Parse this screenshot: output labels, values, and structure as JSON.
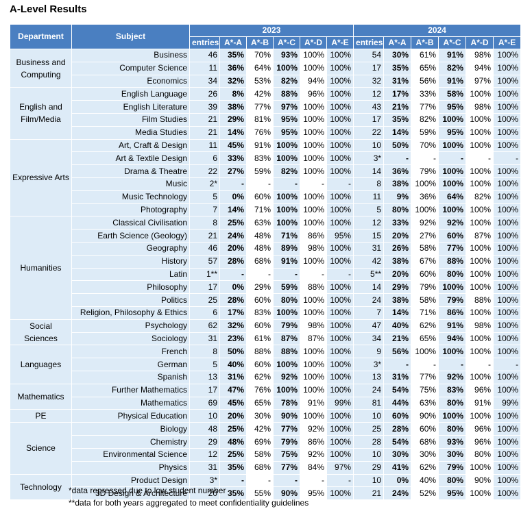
{
  "title": "A-Level Results",
  "table": {
    "header": {
      "department": "Department",
      "subject": "Subject",
      "years": [
        "2023",
        "2024"
      ],
      "columns": [
        "entries",
        "A*-A",
        "A*-B",
        "A*-C",
        "A*-D",
        "A*-E"
      ]
    },
    "groups": [
      {
        "department": "Business and Computing",
        "rows": [
          {
            "subject": "Business",
            "results": [
              [
                "46",
                "35%",
                "70%",
                "93%",
                "100%",
                "100%"
              ],
              [
                "54",
                "30%",
                "61%",
                "91%",
                "98%",
                "100%"
              ]
            ]
          },
          {
            "subject": "Computer Science",
            "results": [
              [
                "11",
                "36%",
                "64%",
                "100%",
                "100%",
                "100%"
              ],
              [
                "17",
                "35%",
                "65%",
                "82%",
                "94%",
                "100%"
              ]
            ]
          },
          {
            "subject": "Economics",
            "results": [
              [
                "34",
                "32%",
                "53%",
                "82%",
                "94%",
                "100%"
              ],
              [
                "32",
                "31%",
                "56%",
                "91%",
                "97%",
                "100%"
              ]
            ]
          }
        ]
      },
      {
        "department": "English and Film/Media",
        "rows": [
          {
            "subject": "English Language",
            "results": [
              [
                "26",
                "8%",
                "42%",
                "88%",
                "96%",
                "100%"
              ],
              [
                "12",
                "17%",
                "33%",
                "58%",
                "100%",
                "100%"
              ]
            ]
          },
          {
            "subject": "English Literature",
            "results": [
              [
                "39",
                "38%",
                "77%",
                "97%",
                "100%",
                "100%"
              ],
              [
                "43",
                "21%",
                "77%",
                "95%",
                "98%",
                "100%"
              ]
            ]
          },
          {
            "subject": "Film Studies",
            "results": [
              [
                "21",
                "29%",
                "81%",
                "95%",
                "100%",
                "100%"
              ],
              [
                "17",
                "35%",
                "82%",
                "100%",
                "100%",
                "100%"
              ]
            ]
          },
          {
            "subject": "Media Studies",
            "results": [
              [
                "21",
                "14%",
                "76%",
                "95%",
                "100%",
                "100%"
              ],
              [
                "22",
                "14%",
                "59%",
                "95%",
                "100%",
                "100%"
              ]
            ]
          }
        ]
      },
      {
        "department": "Expressive Arts",
        "rows": [
          {
            "subject": "Art, Craft & Design",
            "results": [
              [
                "11",
                "45%",
                "91%",
                "100%",
                "100%",
                "100%"
              ],
              [
                "10",
                "50%",
                "70%",
                "100%",
                "100%",
                "100%"
              ]
            ]
          },
          {
            "subject": "Art & Textile Design",
            "results": [
              [
                "6",
                "33%",
                "83%",
                "100%",
                "100%",
                "100%"
              ],
              [
                "3*",
                "-",
                "-",
                "-",
                "-",
                "-"
              ]
            ]
          },
          {
            "subject": "Drama & Theatre",
            "results": [
              [
                "22",
                "27%",
                "59%",
                "82%",
                "100%",
                "100%"
              ],
              [
                "14",
                "36%",
                "79%",
                "100%",
                "100%",
                "100%"
              ]
            ]
          },
          {
            "subject": "Music",
            "results": [
              [
                "2*",
                "-",
                "-",
                "-",
                "-",
                "-"
              ],
              [
                "8",
                "38%",
                "100%",
                "100%",
                "100%",
                "100%"
              ]
            ]
          },
          {
            "subject": "Music Technology",
            "results": [
              [
                "5",
                "0%",
                "60%",
                "100%",
                "100%",
                "100%"
              ],
              [
                "11",
                "9%",
                "36%",
                "64%",
                "82%",
                "100%"
              ]
            ]
          },
          {
            "subject": "Photography",
            "results": [
              [
                "7",
                "14%",
                "71%",
                "100%",
                "100%",
                "100%"
              ],
              [
                "5",
                "80%",
                "100%",
                "100%",
                "100%",
                "100%"
              ]
            ]
          }
        ]
      },
      {
        "department": "Humanities",
        "rows": [
          {
            "subject": "Classical Civilisation",
            "results": [
              [
                "8",
                "25%",
                "63%",
                "100%",
                "100%",
                "100%"
              ],
              [
                "12",
                "33%",
                "92%",
                "92%",
                "100%",
                "100%"
              ]
            ]
          },
          {
            "subject": "Earth Science (Geology)",
            "results": [
              [
                "21",
                "24%",
                "48%",
                "71%",
                "86%",
                "95%"
              ],
              [
                "15",
                "20%",
                "27%",
                "60%",
                "87%",
                "100%"
              ]
            ]
          },
          {
            "subject": "Geography",
            "results": [
              [
                "46",
                "20%",
                "48%",
                "89%",
                "98%",
                "100%"
              ],
              [
                "31",
                "26%",
                "58%",
                "77%",
                "100%",
                "100%"
              ]
            ]
          },
          {
            "subject": "History",
            "results": [
              [
                "57",
                "28%",
                "68%",
                "91%",
                "100%",
                "100%"
              ],
              [
                "42",
                "38%",
                "67%",
                "88%",
                "100%",
                "100%"
              ]
            ]
          },
          {
            "subject": "Latin",
            "results": [
              [
                "1**",
                "-",
                "-",
                "-",
                "-",
                "-"
              ],
              [
                "5**",
                "20%",
                "60%",
                "80%",
                "100%",
                "100%"
              ]
            ]
          },
          {
            "subject": "Philosophy",
            "results": [
              [
                "17",
                "0%",
                "29%",
                "59%",
                "88%",
                "100%"
              ],
              [
                "14",
                "29%",
                "79%",
                "100%",
                "100%",
                "100%"
              ]
            ]
          },
          {
            "subject": "Politics",
            "results": [
              [
                "25",
                "28%",
                "60%",
                "80%",
                "100%",
                "100%"
              ],
              [
                "24",
                "38%",
                "58%",
                "79%",
                "88%",
                "100%"
              ]
            ]
          },
          {
            "subject": "Religion, Philosophy & Ethics",
            "results": [
              [
                "6",
                "17%",
                "83%",
                "100%",
                "100%",
                "100%"
              ],
              [
                "7",
                "14%",
                "71%",
                "86%",
                "100%",
                "100%"
              ]
            ]
          }
        ]
      },
      {
        "department": "Social Sciences",
        "rows": [
          {
            "subject": "Psychology",
            "results": [
              [
                "62",
                "32%",
                "60%",
                "79%",
                "98%",
                "100%"
              ],
              [
                "47",
                "40%",
                "62%",
                "91%",
                "98%",
                "100%"
              ]
            ]
          },
          {
            "subject": "Sociology",
            "results": [
              [
                "31",
                "23%",
                "61%",
                "87%",
                "87%",
                "100%"
              ],
              [
                "34",
                "21%",
                "65%",
                "94%",
                "100%",
                "100%"
              ]
            ]
          }
        ]
      },
      {
        "department": "Languages",
        "rows": [
          {
            "subject": "French",
            "results": [
              [
                "8",
                "50%",
                "88%",
                "88%",
                "100%",
                "100%"
              ],
              [
                "9",
                "56%",
                "100%",
                "100%",
                "100%",
                "100%"
              ]
            ]
          },
          {
            "subject": "German",
            "results": [
              [
                "5",
                "40%",
                "60%",
                "100%",
                "100%",
                "100%"
              ],
              [
                "3*",
                "-",
                "-",
                "-",
                "-",
                "-"
              ]
            ]
          },
          {
            "subject": "Spanish",
            "results": [
              [
                "13",
                "31%",
                "62%",
                "92%",
                "100%",
                "100%"
              ],
              [
                "13",
                "31%",
                "77%",
                "92%",
                "100%",
                "100%"
              ]
            ]
          }
        ]
      },
      {
        "department": "Mathematics",
        "rows": [
          {
            "subject": "Further Mathematics",
            "results": [
              [
                "17",
                "47%",
                "76%",
                "100%",
                "100%",
                "100%"
              ],
              [
                "24",
                "54%",
                "75%",
                "83%",
                "96%",
                "100%"
              ]
            ]
          },
          {
            "subject": "Mathematics",
            "results": [
              [
                "69",
                "45%",
                "65%",
                "78%",
                "91%",
                "99%"
              ],
              [
                "81",
                "44%",
                "63%",
                "80%",
                "91%",
                "99%"
              ]
            ]
          }
        ]
      },
      {
        "department": "PE",
        "rows": [
          {
            "subject": "Physical Education",
            "results": [
              [
                "10",
                "20%",
                "30%",
                "90%",
                "100%",
                "100%"
              ],
              [
                "10",
                "60%",
                "90%",
                "100%",
                "100%",
                "100%"
              ]
            ]
          }
        ]
      },
      {
        "department": "Science",
        "rows": [
          {
            "subject": "Biology",
            "results": [
              [
                "48",
                "25%",
                "42%",
                "77%",
                "92%",
                "100%"
              ],
              [
                "25",
                "28%",
                "60%",
                "80%",
                "96%",
                "100%"
              ]
            ]
          },
          {
            "subject": "Chemistry",
            "results": [
              [
                "29",
                "48%",
                "69%",
                "79%",
                "86%",
                "100%"
              ],
              [
                "28",
                "54%",
                "68%",
                "93%",
                "96%",
                "100%"
              ]
            ]
          },
          {
            "subject": "Environmental Science",
            "results": [
              [
                "12",
                "25%",
                "58%",
                "75%",
                "92%",
                "100%"
              ],
              [
                "10",
                "30%",
                "30%",
                "30%",
                "80%",
                "100%"
              ]
            ]
          },
          {
            "subject": "Physics",
            "results": [
              [
                "31",
                "35%",
                "68%",
                "77%",
                "84%",
                "97%"
              ],
              [
                "29",
                "41%",
                "62%",
                "79%",
                "100%",
                "100%"
              ]
            ]
          }
        ]
      },
      {
        "department": "Technology",
        "rows": [
          {
            "subject": "Product Design",
            "results": [
              [
                "3*",
                "-",
                "-",
                "-",
                "-",
                "-"
              ],
              [
                "10",
                "0%",
                "40%",
                "80%",
                "90%",
                "100%"
              ]
            ]
          },
          {
            "subject": "3D Design & Architecture",
            "results": [
              [
                "20",
                "35%",
                "55%",
                "90%",
                "95%",
                "100%"
              ],
              [
                "21",
                "24%",
                "52%",
                "95%",
                "100%",
                "100%"
              ]
            ]
          }
        ]
      }
    ]
  },
  "footnotes": [
    "*data repressed due to low student number",
    "**data for both years aggregated to meet confidentiality guidelines"
  ]
}
